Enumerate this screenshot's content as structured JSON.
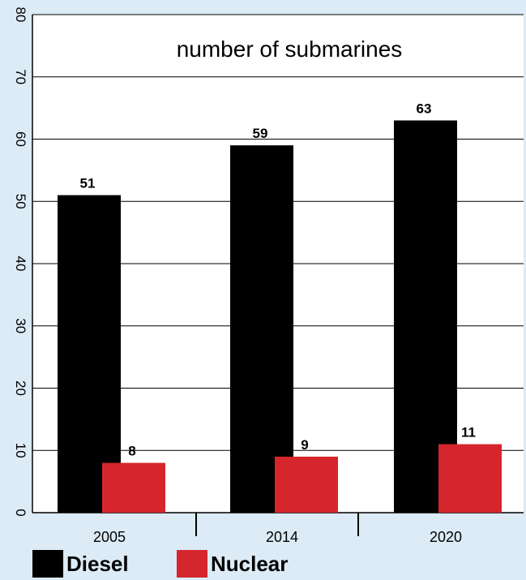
{
  "chart_data": {
    "type": "bar",
    "title": "number of submarines",
    "categories": [
      "2005",
      "2014",
      "2020"
    ],
    "series": [
      {
        "name": "Diesel",
        "values": [
          51,
          59,
          63
        ],
        "color": "#000000"
      },
      {
        "name": "Nuclear",
        "values": [
          8,
          9,
          11
        ],
        "color": "#d4262c"
      }
    ],
    "ylim": [
      0,
      80
    ],
    "yticks": [
      "0",
      "10",
      "20",
      "30",
      "40",
      "50",
      "60",
      "70",
      "80"
    ],
    "grid": true,
    "legend": "bottom-left"
  }
}
